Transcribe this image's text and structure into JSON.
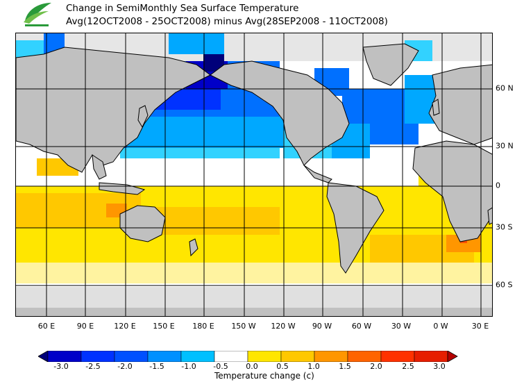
{
  "title": {
    "line1": "Change in SemiMonthly Sea Surface Temperature",
    "line2": "Avg(12OCT2008 - 25OCT2008) minus Avg(28SEP2008 - 11OCT2008)"
  },
  "logo": {
    "name": "observatory-logo-icon"
  },
  "map": {
    "lon_labels": [
      "60 E",
      "90 E",
      "120 E",
      "150 E",
      "180 E",
      "150 W",
      "120 W",
      "90 W",
      "60 W",
      "30 W",
      "0 W",
      "30 E"
    ],
    "lat_labels": [
      "60 N",
      "30 N",
      "0",
      "30 S",
      "60 S"
    ],
    "colors": {
      "land": "#c0c0c0",
      "ice": "#e0e0e0",
      "coast": "#000000",
      "grid": "#000000"
    }
  },
  "colorbar": {
    "title": "Temperature change  (c)",
    "ticks": [
      "-3.0",
      "-2.5",
      "-2.0",
      "-1.5",
      "-1.0",
      "-0.5",
      "0.0",
      "0.5",
      "1.0",
      "1.5",
      "2.0",
      "2.5",
      "3.0"
    ],
    "colors": [
      "#00007a",
      "#0000c8",
      "#0032ff",
      "#0070ff",
      "#00a8ff",
      "#32d2ff",
      "#ffffff",
      "#ffe600",
      "#ffc800",
      "#ff9600",
      "#ff5000",
      "#e61e00",
      "#b40000"
    ]
  }
}
